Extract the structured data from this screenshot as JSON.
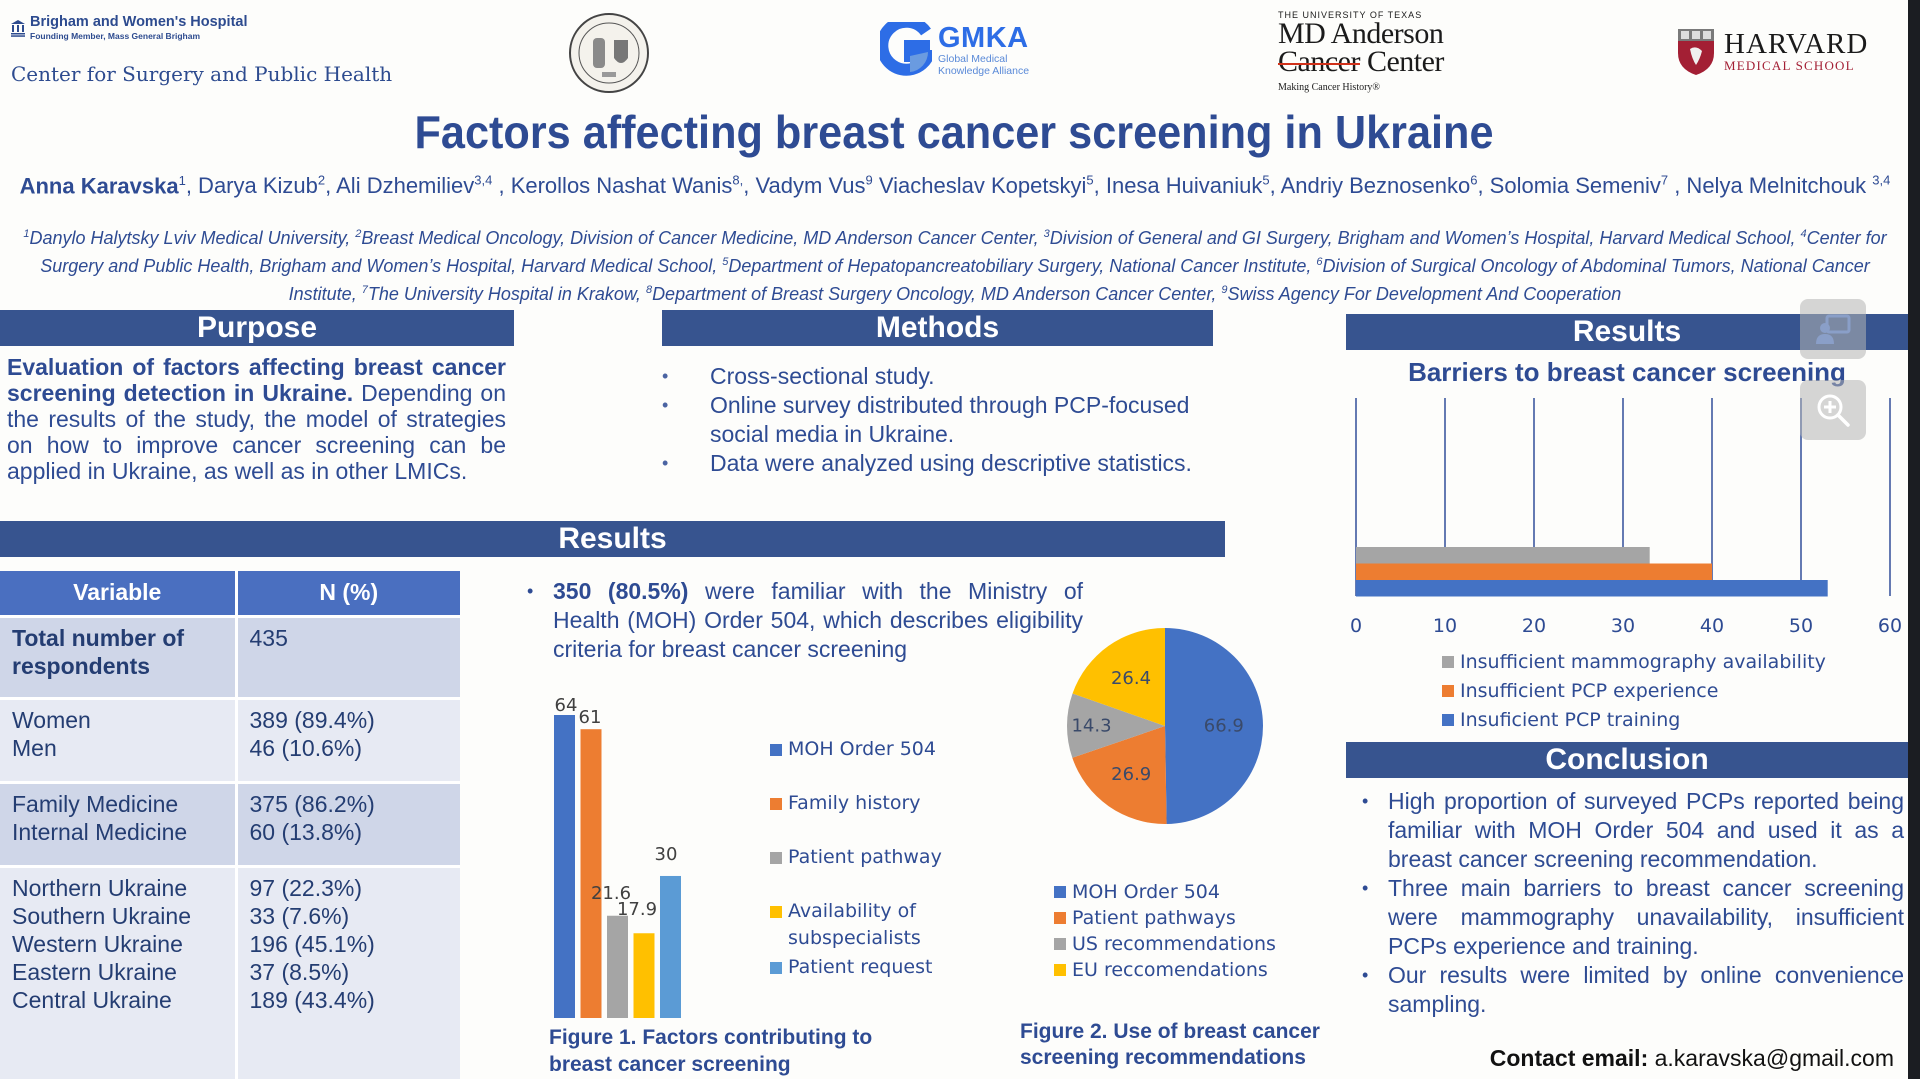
{
  "logos": {
    "bwh": {
      "name": "Brigham and Women's Hospital",
      "sub": "Founding Member, Mass General Brigham"
    },
    "center": "Center for Surgery and Public Health",
    "gmka": {
      "title": "GMKA",
      "sub1": "Global Medical",
      "sub2": "Knowledge Alliance"
    },
    "mda": {
      "top": "THE UNIVERSITY OF TEXAS",
      "line1": "MD Anderson",
      "line2a": "Cancer",
      "line2b": "Center",
      "tag": "Making Cancer History®"
    },
    "hms": {
      "title": "HARVARD",
      "sub": "MEDICAL SCHOOL"
    }
  },
  "title": "Factors affecting breast cancer screening in Ukraine",
  "authors": {
    "lead": "Anna Karavska",
    "lead_sup": "1",
    "list": [
      {
        "name": ", Darya Kizub",
        "sup": "2"
      },
      {
        "name": ", Ali Dzhemiliev",
        "sup": "3,4"
      },
      {
        "name": " , Kerollos Nashat Wanis",
        "sup": "8,"
      },
      {
        "name": ", Vadym Vus",
        "sup": "9"
      },
      {
        "name": " Viacheslav Kopetskyi",
        "sup": "5"
      },
      {
        "name": ", Inesa Huivaniuk",
        "sup": "5"
      },
      {
        "name": ", Andriy Beznosenko",
        "sup": "6"
      },
      {
        "name": ", Solomia Semeniv",
        "sup": "7"
      },
      {
        "name": " , Nelya Melnitchouk ",
        "sup": "3,4"
      }
    ]
  },
  "affiliations": [
    {
      "sup": "1",
      "text": "Danylo Halytsky Lviv Medical University, "
    },
    {
      "sup": "2",
      "text": "Breast Medical Oncology, Division of Cancer Medicine, MD Anderson Cancer Center, "
    },
    {
      "sup": "3",
      "text": "Division of General and GI Surgery, Brigham and Women’s Hospital, Harvard Medical School, "
    },
    {
      "sup": "4",
      "text": "Center for Surgery and Public Health, Brigham and Women’s Hospital, Harvard Medical School, "
    },
    {
      "sup": "5",
      "text": "Department of Hepatopancreatobiliary Surgery, National Cancer Institute, "
    },
    {
      "sup": "6",
      "text": "Division of Surgical Oncology of Abdominal Tumors, National Cancer Institute, "
    },
    {
      "sup": "7",
      "text": "The University Hospital in Krakow, "
    },
    {
      "sup": "8",
      "text": "Department of Breast Surgery Oncology, MD Anderson Cancer Center, "
    },
    {
      "sup": "9",
      "text": "Swiss Agency For Development And Cooperation"
    }
  ],
  "sections": {
    "purpose": "Purpose",
    "methods": "Methods",
    "results_main": "Results",
    "results_right": "Results",
    "conclusion": "Conclusion"
  },
  "purpose": {
    "bold": "Evaluation of factors affecting breast cancer screening detection in Ukraine.",
    "text": " Depending on the results of the study, the model of strategies on how to improve cancer screening can be applied in Ukraine, as well as in other LMICs."
  },
  "methods": [
    "Cross-sectional study.",
    "Online survey distributed through PCP-focused social media in Ukraine.",
    "Data were analyzed using descriptive statistics."
  ],
  "table": {
    "headers": [
      "Variable",
      "N (%)"
    ],
    "groups": [
      {
        "labels": [
          "Total number of respondents"
        ],
        "values": [
          "435"
        ],
        "bold": true
      },
      {
        "labels": [
          "Women",
          "Men"
        ],
        "values": [
          "389 (89.4%)",
          "46 (10.6%)"
        ]
      },
      {
        "labels": [
          "Family Medicine",
          "Internal Medicine"
        ],
        "values": [
          "375 (86.2%)",
          "60 (13.8%)"
        ]
      },
      {
        "labels": [
          "Northern Ukraine",
          "Southern Ukraine",
          "Western Ukraine",
          "Eastern Ukraine",
          "Central Ukraine"
        ],
        "values": [
          "97 (22.3%)",
          "33 (7.6%)",
          "196 (45.1%)",
          "37 (8.5%)",
          "189 (43.4%)"
        ]
      }
    ]
  },
  "finding": {
    "bullet": "•",
    "bold": "350 (80.5%)",
    "text": " were familiar with the Ministry of Health (MOH) Order 504, which describes eligibility criteria for breast cancer screening"
  },
  "contact": {
    "label": "Contact email:",
    "email": " a.karavska@gmail.com"
  },
  "conclusion": [
    "High proportion of surveyed PCPs reported being familiar with MOH Order 504 and used it as a breast cancer screening recommendation.",
    "Three main barriers to breast cancer screening were mammography unavailability, insufficient PCPs experience and training.",
    "Our results were limited by online convenience sampling."
  ],
  "colors": {
    "blue": "#4472c4",
    "orange": "#ed7d31",
    "gray": "#a5a5a5",
    "yellow": "#ffc000",
    "lightblue": "#5b9bd5",
    "header": "#37548f",
    "text": "#2e4b93"
  },
  "chart_data": [
    {
      "id": "fig1",
      "type": "bar",
      "title": "Figure 1. Factors contributing to breast cancer screening",
      "caption_lines": [
        "Figure 1. Factors contributing to",
        "breast cancer screening"
      ],
      "categories": [
        "MOH Order 504",
        "Family history",
        "Patient pathway",
        "Availability of subspecialists",
        "Patient request"
      ],
      "legend_lines": [
        [
          "MOH Order 504"
        ],
        [
          "Family history"
        ],
        [
          "Patient pathway"
        ],
        [
          "Availability of",
          "subspecialists"
        ],
        [
          "Patient request"
        ]
      ],
      "values": [
        64,
        61,
        21.6,
        17.9,
        30
      ],
      "labels": [
        "64",
        "61",
        "21.6",
        "17.9",
        "30"
      ],
      "colors": [
        "#4472c4",
        "#ed7d31",
        "#a5a5a5",
        "#ffc000",
        "#5b9bd5"
      ],
      "ylim": [
        0,
        64
      ],
      "legend": "right",
      "grid": false
    },
    {
      "id": "fig2",
      "type": "pie",
      "title": "Figure 2. Use of breast cancer screening recommendations",
      "caption_lines": [
        "Figure 2. Use of breast cancer",
        "screening recommendations"
      ],
      "categories": [
        "MOH Order 504",
        "Patient pathways",
        "US recommendations",
        "EU reccomendations"
      ],
      "values": [
        66.9,
        26.9,
        14.3,
        26.4
      ],
      "labels": [
        "66.9",
        "26.9",
        "14.3",
        "26.4"
      ],
      "colors": [
        "#4472c4",
        "#ed7d31",
        "#a5a5a5",
        "#ffc000"
      ],
      "legend": "bottom"
    },
    {
      "id": "fig3",
      "type": "bar",
      "orientation": "horizontal",
      "title": "Barriers to breast cancer screening",
      "series": [
        {
          "name": "Insufficient mammography availability",
          "value": 33,
          "color": "#a5a5a5"
        },
        {
          "name": "Insufficient PCP experience",
          "value": 40,
          "color": "#ed7d31"
        },
        {
          "name": "Insuficient PCP training",
          "value": 53,
          "color": "#4472c4"
        }
      ],
      "xticks": [
        "0",
        "10",
        "20",
        "30",
        "40",
        "50",
        "60"
      ],
      "xlim": [
        0,
        60
      ],
      "grid": true,
      "legend": "bottom"
    }
  ]
}
